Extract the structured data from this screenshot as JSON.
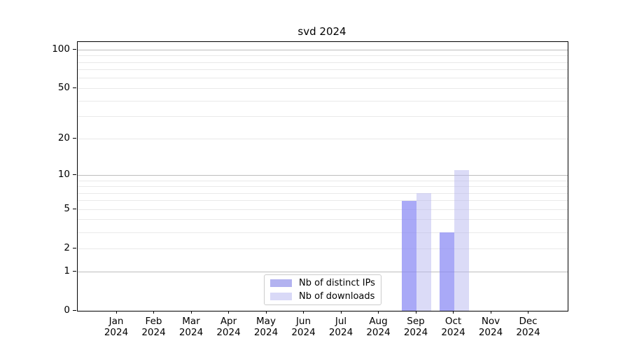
{
  "chart_data": {
    "type": "bar",
    "title": "svd 2024",
    "x_ticks": [
      {
        "month": "Jan",
        "year": "2024"
      },
      {
        "month": "Feb",
        "year": "2024"
      },
      {
        "month": "Mar",
        "year": "2024"
      },
      {
        "month": "Apr",
        "year": "2024"
      },
      {
        "month": "May",
        "year": "2024"
      },
      {
        "month": "Jun",
        "year": "2024"
      },
      {
        "month": "Jul",
        "year": "2024"
      },
      {
        "month": "Aug",
        "year": "2024"
      },
      {
        "month": "Sep",
        "year": "2024"
      },
      {
        "month": "Oct",
        "year": "2024"
      },
      {
        "month": "Nov",
        "year": "2024"
      },
      {
        "month": "Dec",
        "year": "2024"
      }
    ],
    "y_ticks": [
      0,
      1,
      2,
      5,
      10,
      20,
      50,
      100
    ],
    "y_scale": "log10(1+y)",
    "ylim": [
      0,
      114
    ],
    "grid": true,
    "y_gridlines_major": [
      1,
      10,
      100
    ],
    "y_gridlines_minor": [
      2,
      3,
      4,
      5,
      6,
      7,
      8,
      9,
      20,
      30,
      40,
      50,
      60,
      70,
      80,
      90
    ],
    "legend_position": "lower center",
    "series": [
      {
        "name": "Nb of distinct IPs",
        "bar_color": "rgba(136,136,244,0.72)",
        "legend_color": "#b2b2f0",
        "values": [
          0,
          0,
          0,
          0,
          0,
          0,
          0,
          0,
          6,
          3,
          0,
          0
        ]
      },
      {
        "name": "Nb of downloads",
        "bar_color": "rgba(184,184,240,0.5)",
        "legend_color": "#d9d9f7",
        "values": [
          0,
          0,
          0,
          0,
          0,
          0,
          0,
          0,
          7,
          11,
          0,
          0
        ]
      }
    ]
  }
}
